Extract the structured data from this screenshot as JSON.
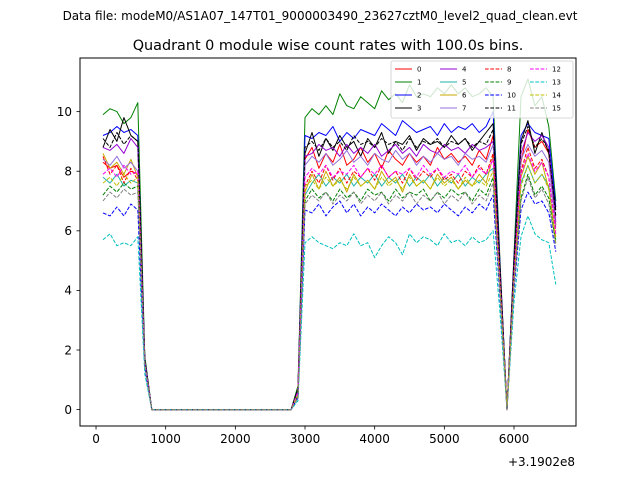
{
  "suptitle": "Data file: modeM0/AS1A07_147T01_9000003490_23627cztM0_level2_quad_clean.evt",
  "chart_data": {
    "type": "line",
    "title": "Quadrant 0 module wise count rates with 100.0s bins.",
    "xlabel": "",
    "ylabel": "",
    "x_offset_label": "+3.1902e8",
    "xlim": [
      -230,
      6890
    ],
    "ylim": [
      -0.55,
      11.8
    ],
    "xticks": [
      0,
      1000,
      2000,
      3000,
      4000,
      5000,
      6000
    ],
    "yticks": [
      0,
      2,
      4,
      6,
      8,
      10
    ],
    "grid": false,
    "legend_position": "top-right",
    "x": [
      100,
      200,
      300,
      400,
      500,
      600,
      700,
      800,
      900,
      1000,
      1100,
      1200,
      1300,
      1400,
      1500,
      1600,
      1700,
      1800,
      1900,
      2000,
      2100,
      2200,
      2300,
      2400,
      2500,
      2600,
      2700,
      2800,
      2900,
      3000,
      3100,
      3200,
      3300,
      3400,
      3500,
      3600,
      3700,
      3800,
      3900,
      4000,
      4100,
      4200,
      4300,
      4400,
      4500,
      4600,
      4700,
      4800,
      4900,
      5000,
      5100,
      5200,
      5300,
      5400,
      5500,
      5600,
      5700,
      5800,
      5900,
      6000,
      6100,
      6200,
      6300,
      6400,
      6500,
      6600
    ],
    "series": [
      {
        "name": "0",
        "color": "#ff0000",
        "dash": "solid",
        "values": [
          8.3,
          8.1,
          8.2,
          7.8,
          8.0,
          7.9,
          1.5,
          0,
          0,
          0,
          0,
          0,
          0,
          0,
          0,
          0,
          0,
          0,
          0,
          0,
          0,
          0,
          0,
          0,
          0,
          0,
          0,
          0,
          0.5,
          8.4,
          8.8,
          8.1,
          8.6,
          8.3,
          8.9,
          8.2,
          8.4,
          8.8,
          8.3,
          8.6,
          8.1,
          8.7,
          8.4,
          8.2,
          8.6,
          8.3,
          8.5,
          8.2,
          8.8,
          8.4,
          8.6,
          8.3,
          8.5,
          8.2,
          8.7,
          8.4,
          9.2,
          4.5,
          0,
          4.8,
          8.3,
          9.4,
          8.8,
          9.0,
          8.6,
          6.2
        ]
      },
      {
        "name": "1",
        "color": "#008000",
        "dash": "solid",
        "values": [
          9.9,
          10.1,
          10.0,
          9.6,
          9.8,
          10.3,
          1.8,
          0,
          0,
          0,
          0,
          0,
          0,
          0,
          0,
          0,
          0,
          0,
          0,
          0,
          0,
          0,
          0,
          0,
          0,
          0,
          0,
          0,
          0.8,
          9.8,
          10.1,
          9.9,
          10.2,
          9.9,
          10.6,
          10.2,
          10.1,
          10.5,
          10.3,
          10.1,
          10.7,
          10.4,
          10.6,
          10.3,
          10.9,
          10.5,
          10.6,
          10.5,
          10.8,
          10.6,
          10.9,
          10.6,
          10.8,
          10.5,
          10.6,
          10.8,
          10.5,
          4.9,
          0,
          5.2,
          10.5,
          11.1,
          10.2,
          10.5,
          9.5,
          7.0
        ]
      },
      {
        "name": "2",
        "color": "#0000ff",
        "dash": "solid",
        "values": [
          9.2,
          9.3,
          9.5,
          9.3,
          9.4,
          9.2,
          1.7,
          0,
          0,
          0,
          0,
          0,
          0,
          0,
          0,
          0,
          0,
          0,
          0,
          0,
          0,
          0,
          0,
          0,
          0,
          0,
          0,
          0,
          0.7,
          9.2,
          9.1,
          9.3,
          9.2,
          9.5,
          9.0,
          9.3,
          9.1,
          9.4,
          9.3,
          9.2,
          9.6,
          9.4,
          9.2,
          9.7,
          9.5,
          9.3,
          9.4,
          9.5,
          9.2,
          9.6,
          9.3,
          9.5,
          9.4,
          9.6,
          9.3,
          9.5,
          10.0,
          4.8,
          0,
          5.1,
          9.2,
          9.6,
          9.3,
          9.2,
          9.1,
          6.8
        ]
      },
      {
        "name": "3",
        "color": "#000000",
        "dash": "solid",
        "values": [
          8.8,
          9.4,
          9.0,
          9.8,
          9.2,
          9.0,
          1.7,
          0,
          0,
          0,
          0,
          0,
          0,
          0,
          0,
          0,
          0,
          0,
          0,
          0,
          0,
          0,
          0,
          0,
          0,
          0,
          0,
          0,
          0.7,
          8.6,
          9.3,
          8.5,
          9.1,
          8.7,
          9.2,
          8.8,
          9.0,
          8.5,
          9.1,
          8.8,
          9.3,
          8.6,
          9.0,
          8.9,
          9.2,
          8.7,
          9.1,
          8.9,
          9.0,
          8.8,
          9.2,
          8.9,
          9.1,
          8.7,
          9.0,
          9.3,
          9.6,
          4.7,
          0,
          5.0,
          9.0,
          9.7,
          8.6,
          9.3,
          8.6,
          6.7
        ]
      },
      {
        "name": "4",
        "color": "#9400d3",
        "dash": "solid",
        "values": [
          8.8,
          8.7,
          8.9,
          8.6,
          9.1,
          8.8,
          1.6,
          0,
          0,
          0,
          0,
          0,
          0,
          0,
          0,
          0,
          0,
          0,
          0,
          0,
          0,
          0,
          0,
          0,
          0,
          0,
          0,
          0,
          0.6,
          8.5,
          8.6,
          8.9,
          8.7,
          8.8,
          8.5,
          8.9,
          8.6,
          8.8,
          8.6,
          8.9,
          8.5,
          8.7,
          8.9,
          8.6,
          8.8,
          8.5,
          8.9,
          8.7,
          8.6,
          8.9,
          8.7,
          8.8,
          8.6,
          8.9,
          8.7,
          8.8,
          9.0,
          4.5,
          0,
          4.8,
          8.6,
          9.3,
          9.0,
          9.2,
          8.8,
          6.3
        ]
      },
      {
        "name": "5",
        "color": "#20b2aa",
        "dash": "solid",
        "values": [
          7.8,
          7.6,
          7.9,
          7.5,
          7.7,
          7.6,
          1.5,
          0,
          0,
          0,
          0,
          0,
          0,
          0,
          0,
          0,
          0,
          0,
          0,
          0,
          0,
          0,
          0,
          0,
          0,
          0,
          0,
          0,
          0.5,
          7.2,
          7.6,
          7.9,
          7.5,
          7.8,
          7.6,
          7.9,
          7.5,
          7.8,
          7.6,
          7.9,
          7.5,
          7.8,
          7.6,
          7.9,
          7.5,
          7.8,
          7.6,
          7.9,
          7.5,
          7.8,
          7.6,
          7.9,
          7.5,
          7.8,
          7.6,
          7.9,
          8.1,
          4.0,
          0,
          4.3,
          7.6,
          8.2,
          7.6,
          7.9,
          7.5,
          5.7
        ]
      },
      {
        "name": "6",
        "color": "#c8a800",
        "dash": "solid",
        "values": [
          8.6,
          8.1,
          8.3,
          7.9,
          8.4,
          7.8,
          1.5,
          0,
          0,
          0,
          0,
          0,
          0,
          0,
          0,
          0,
          0,
          0,
          0,
          0,
          0,
          0,
          0,
          0,
          0,
          0,
          0,
          0,
          0.5,
          7.3,
          7.9,
          7.4,
          8.0,
          7.5,
          7.8,
          7.3,
          7.9,
          7.5,
          7.7,
          7.4,
          8.0,
          7.6,
          7.8,
          7.3,
          7.9,
          7.5,
          7.7,
          7.4,
          7.9,
          7.6,
          7.8,
          7.4,
          7.7,
          7.5,
          7.9,
          7.6,
          8.5,
          4.3,
          0,
          4.6,
          7.8,
          8.5,
          7.9,
          8.3,
          7.4,
          5.8
        ]
      },
      {
        "name": "7",
        "color": "#9370db",
        "dash": "solid",
        "values": [
          8.4,
          8.2,
          8.5,
          8.1,
          8.3,
          8.0,
          1.6,
          0,
          0,
          0,
          0,
          0,
          0,
          0,
          0,
          0,
          0,
          0,
          0,
          0,
          0,
          0,
          0,
          0,
          0,
          0,
          0,
          0,
          0.6,
          8.2,
          8.5,
          8.3,
          8.6,
          8.2,
          8.4,
          8.7,
          8.3,
          8.5,
          8.2,
          8.6,
          8.4,
          8.3,
          8.7,
          8.4,
          8.6,
          8.2,
          8.5,
          8.3,
          8.6,
          8.4,
          8.5,
          8.2,
          8.6,
          8.4,
          8.5,
          8.3,
          8.9,
          4.4,
          0,
          4.7,
          8.4,
          8.9,
          8.5,
          8.7,
          8.3,
          6.1
        ]
      },
      {
        "name": "8",
        "color": "#ff0000",
        "dash": "dashed",
        "values": [
          8.5,
          7.9,
          8.2,
          7.6,
          8.1,
          7.7,
          1.5,
          0,
          0,
          0,
          0,
          0,
          0,
          0,
          0,
          0,
          0,
          0,
          0,
          0,
          0,
          0,
          0,
          0,
          0,
          0,
          0,
          0,
          0.5,
          7.5,
          8.0,
          7.6,
          8.2,
          7.7,
          8.1,
          7.6,
          8.0,
          7.8,
          8.1,
          7.7,
          8.2,
          7.8,
          8.0,
          7.6,
          8.1,
          7.7,
          8.0,
          7.8,
          8.1,
          7.7,
          7.9,
          7.6,
          8.0,
          7.8,
          8.2,
          7.9,
          8.6,
          4.4,
          0,
          4.7,
          8.0,
          8.8,
          8.1,
          8.4,
          7.8,
          6.0
        ]
      },
      {
        "name": "9",
        "color": "#008000",
        "dash": "dashed",
        "values": [
          7.2,
          7.5,
          7.3,
          7.6,
          7.4,
          7.5,
          1.5,
          0,
          0,
          0,
          0,
          0,
          0,
          0,
          0,
          0,
          0,
          0,
          0,
          0,
          0,
          0,
          0,
          0,
          0,
          0,
          0,
          0,
          0.5,
          7.0,
          7.4,
          7.1,
          7.3,
          7.0,
          7.4,
          7.1,
          7.3,
          7.0,
          7.4,
          7.2,
          7.3,
          7.0,
          7.4,
          7.1,
          7.3,
          7.2,
          7.4,
          7.0,
          7.3,
          7.1,
          7.4,
          7.2,
          7.3,
          7.0,
          7.4,
          7.2,
          7.8,
          4.0,
          0,
          4.3,
          7.1,
          7.9,
          7.2,
          7.5,
          7.1,
          5.6
        ]
      },
      {
        "name": "10",
        "color": "#0000ff",
        "dash": "dashed",
        "values": [
          6.6,
          6.5,
          6.8,
          6.5,
          6.9,
          6.7,
          1.4,
          0,
          0,
          0,
          0,
          0,
          0,
          0,
          0,
          0,
          0,
          0,
          0,
          0,
          0,
          0,
          0,
          0,
          0,
          0,
          0,
          0,
          0.4,
          6.7,
          6.6,
          6.9,
          6.5,
          6.8,
          7.0,
          6.6,
          6.9,
          6.5,
          6.8,
          6.6,
          6.9,
          6.7,
          6.5,
          6.8,
          6.6,
          6.9,
          6.7,
          6.8,
          6.6,
          6.9,
          6.7,
          6.5,
          6.8,
          6.6,
          6.9,
          6.7,
          7.2,
          3.7,
          0,
          4.0,
          6.7,
          7.3,
          6.9,
          7.0,
          6.6,
          5.3
        ]
      },
      {
        "name": "11",
        "color": "#000000",
        "dash": "dashed",
        "values": [
          9.1,
          8.8,
          9.3,
          8.9,
          9.2,
          9.0,
          1.7,
          0,
          0,
          0,
          0,
          0,
          0,
          0,
          0,
          0,
          0,
          0,
          0,
          0,
          0,
          0,
          0,
          0,
          0,
          0,
          0,
          0,
          0.7,
          8.8,
          9.0,
          8.7,
          9.1,
          8.8,
          9.0,
          8.7,
          9.2,
          8.9,
          9.0,
          8.8,
          9.1,
          8.9,
          9.0,
          8.7,
          9.1,
          8.8,
          9.0,
          8.9,
          9.1,
          8.8,
          9.0,
          8.9,
          9.1,
          8.8,
          9.0,
          8.9,
          9.4,
          4.6,
          0,
          4.9,
          8.9,
          9.5,
          8.8,
          9.1,
          8.7,
          6.5
        ]
      },
      {
        "name": "12",
        "color": "#ff00ff",
        "dash": "dashed",
        "values": [
          7.9,
          8.1,
          7.8,
          8.2,
          7.9,
          8.0,
          1.6,
          0,
          0,
          0,
          0,
          0,
          0,
          0,
          0,
          0,
          0,
          0,
          0,
          0,
          0,
          0,
          0,
          0,
          0,
          0,
          0,
          0,
          0.6,
          7.8,
          8.1,
          7.9,
          8.2,
          7.8,
          8.0,
          7.9,
          8.2,
          7.8,
          8.1,
          7.9,
          8.2,
          7.8,
          8.0,
          7.9,
          8.1,
          7.8,
          8.2,
          7.9,
          8.1,
          7.8,
          8.0,
          7.9,
          8.2,
          7.8,
          8.1,
          7.9,
          8.4,
          4.2,
          0,
          4.5,
          7.9,
          8.6,
          8.0,
          8.3,
          7.8,
          5.9
        ]
      },
      {
        "name": "13",
        "color": "#00bfbf",
        "dash": "dashed",
        "values": [
          5.7,
          5.9,
          5.5,
          5.6,
          5.5,
          5.8,
          1.2,
          0,
          0,
          0,
          0,
          0,
          0,
          0,
          0,
          0,
          0,
          0,
          0,
          0,
          0,
          0,
          0,
          0,
          0,
          0,
          0,
          0,
          0.3,
          5.6,
          5.8,
          5.6,
          5.5,
          5.4,
          5.6,
          5.5,
          5.9,
          5.5,
          5.6,
          5.1,
          5.5,
          5.8,
          5.6,
          5.2,
          5.9,
          5.6,
          5.8,
          5.7,
          5.5,
          5.9,
          5.6,
          5.7,
          5.5,
          5.8,
          5.6,
          5.7,
          6.0,
          3.2,
          0,
          3.6,
          5.8,
          6.5,
          5.9,
          5.7,
          5.6,
          4.2
        ]
      },
      {
        "name": "14",
        "color": "#bfbf00",
        "dash": "dashed",
        "values": [
          7.6,
          7.8,
          7.5,
          7.9,
          7.6,
          7.8,
          1.5,
          0,
          0,
          0,
          0,
          0,
          0,
          0,
          0,
          0,
          0,
          0,
          0,
          0,
          0,
          0,
          0,
          0,
          0,
          0,
          0,
          0,
          0.5,
          7.5,
          7.7,
          7.4,
          7.8,
          7.5,
          7.7,
          7.4,
          7.8,
          7.5,
          7.7,
          7.4,
          7.8,
          7.5,
          7.7,
          7.4,
          7.8,
          7.5,
          7.7,
          7.4,
          7.8,
          7.5,
          7.7,
          7.4,
          7.8,
          7.5,
          7.7,
          7.5,
          8.0,
          4.0,
          0,
          4.3,
          7.5,
          8.2,
          7.6,
          7.9,
          7.4,
          5.6
        ]
      },
      {
        "name": "15",
        "color": "#808080",
        "dash": "dashed",
        "values": [
          7.0,
          7.3,
          7.1,
          7.4,
          7.2,
          7.3,
          1.5,
          0,
          0,
          0,
          0,
          0,
          0,
          0,
          0,
          0,
          0,
          0,
          0,
          0,
          0,
          0,
          0,
          0,
          0,
          0,
          0,
          0,
          0.4,
          6.9,
          7.2,
          7.0,
          7.3,
          6.9,
          7.2,
          7.0,
          7.3,
          6.9,
          7.2,
          7.0,
          7.3,
          6.9,
          7.2,
          7.0,
          7.3,
          6.9,
          7.2,
          7.0,
          7.3,
          6.9,
          7.2,
          7.0,
          7.3,
          6.9,
          7.2,
          7.0,
          7.6,
          3.9,
          0,
          4.2,
          7.0,
          7.8,
          7.1,
          7.4,
          6.9,
          5.5
        ]
      }
    ]
  }
}
